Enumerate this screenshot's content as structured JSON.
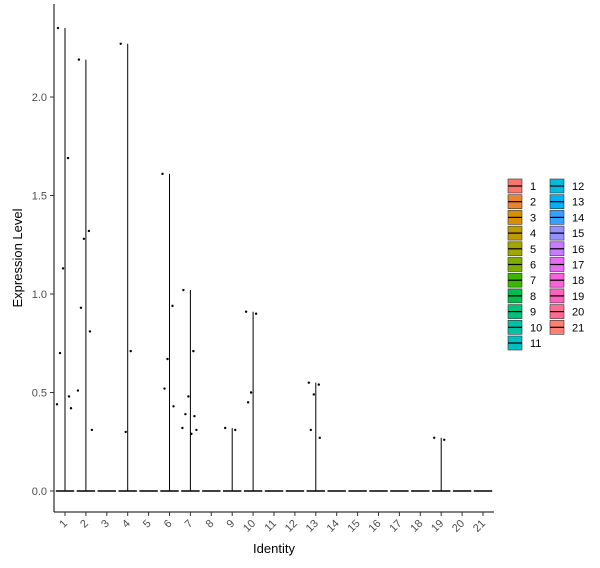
{
  "chart_data": {
    "type": "violin",
    "xlabel": "Identity",
    "ylabel": "Expression Level",
    "ylim": [
      -0.1,
      2.45
    ],
    "yticks": [
      0.0,
      0.5,
      1.0,
      1.5,
      2.0
    ],
    "ytick_labels": [
      "0.0",
      "0.5",
      "1.0",
      "1.5",
      "2.0"
    ],
    "categories": [
      "1",
      "2",
      "3",
      "4",
      "5",
      "6",
      "7",
      "8",
      "9",
      "10",
      "11",
      "12",
      "13",
      "14",
      "15",
      "16",
      "17",
      "18",
      "19",
      "20",
      "21"
    ],
    "colors": [
      "#F8766D",
      "#EA8331",
      "#D89000",
      "#C09B00",
      "#A3A500",
      "#7CAE00",
      "#39B600",
      "#00BB4E",
      "#00BF7D",
      "#00C1A3",
      "#00BFC4",
      "#00BAE0",
      "#00B0F6",
      "#35A2FF",
      "#9590FF",
      "#C77CFF",
      "#E76BF3",
      "#FA62DB",
      "#FF62BC",
      "#FF6C91",
      "#FF7F75"
    ],
    "maxima": [
      2.35,
      2.19,
      0.0,
      2.27,
      0.0,
      1.61,
      1.02,
      0.0,
      0.32,
      0.91,
      0.0,
      0.0,
      0.55,
      0.0,
      0.0,
      0.0,
      0.0,
      0.0,
      0.27,
      0.0,
      0.0
    ],
    "points": [
      [
        2.35,
        1.69,
        1.13,
        0.7,
        0.48,
        0.44,
        0.42
      ],
      [
        2.19,
        1.32,
        1.28,
        0.93,
        0.81,
        0.51,
        0.31
      ],
      [],
      [
        2.27,
        0.71,
        0.3
      ],
      [],
      [
        1.61,
        0.94,
        0.67,
        0.52,
        0.43
      ],
      [
        1.02,
        0.71,
        0.48,
        0.39,
        0.38,
        0.32,
        0.31,
        0.29
      ],
      [],
      [
        0.32,
        0.31
      ],
      [
        0.91,
        0.9,
        0.5,
        0.45
      ],
      [],
      [],
      [
        0.55,
        0.54,
        0.49,
        0.31,
        0.27
      ],
      [],
      [],
      [],
      [],
      [],
      [
        0.27,
        0.26
      ],
      [],
      []
    ],
    "legend": {
      "position": "right",
      "columns": [
        [
          "1",
          "2",
          "3",
          "4",
          "5",
          "6",
          "7",
          "8",
          "9",
          "10",
          "11"
        ],
        [
          "12",
          "13",
          "14",
          "15",
          "16",
          "17",
          "18",
          "19",
          "20",
          "21"
        ]
      ]
    },
    "grid": false
  }
}
